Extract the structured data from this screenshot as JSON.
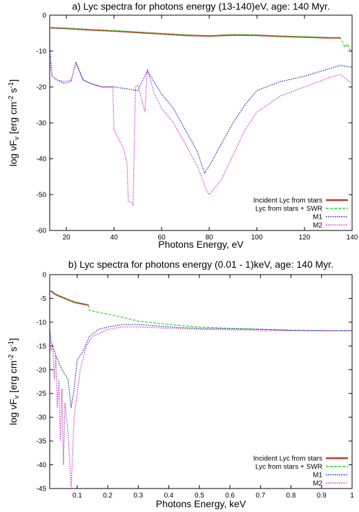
{
  "chart_data": [
    {
      "type": "line",
      "title": "a) Lyc spectra for photons energy (13-140)eV, age: 140 Myr.",
      "xlabel": "Photons Energy, eV",
      "ylabel_parts": {
        "main": "log νF",
        "sub": "ν",
        "bracket_open": " [erg cm",
        "exp1": "-2",
        "mid": " s",
        "exp2": "-1",
        "bracket_close": "]"
      },
      "xlim": [
        13,
        140
      ],
      "ylim": [
        -60,
        0
      ],
      "xticks": [
        20,
        40,
        60,
        80,
        100,
        120,
        140
      ],
      "yticks": [
        0,
        -10,
        -20,
        -30,
        -40,
        -50,
        -60
      ],
      "legend_position": "bottom-right",
      "series": [
        {
          "name": "Incident Lyc from stars",
          "color": "#c0392b",
          "style": "solid",
          "points": [
            [
              13,
              -3.5
            ],
            [
              20,
              -3.7
            ],
            [
              30,
              -4.1
            ],
            [
              40,
              -4.4
            ],
            [
              50,
              -4.8
            ],
            [
              60,
              -5.2
            ],
            [
              70,
              -5.6
            ],
            [
              80,
              -5.8
            ],
            [
              90,
              -5.5
            ],
            [
              100,
              -5.6
            ],
            [
              110,
              -5.9
            ],
            [
              120,
              -6.1
            ],
            [
              130,
              -6.3
            ],
            [
              135,
              -6.3
            ]
          ]
        },
        {
          "name": "Lyc from stars + SWR",
          "color": "#33cc33",
          "style": "dashed",
          "points": [
            [
              13,
              -3.4
            ],
            [
              20,
              -3.6
            ],
            [
              30,
              -4.0
            ],
            [
              40,
              -4.3
            ],
            [
              50,
              -4.7
            ],
            [
              60,
              -5.1
            ],
            [
              70,
              -5.5
            ],
            [
              80,
              -5.7
            ],
            [
              90,
              -5.4
            ],
            [
              100,
              -5.5
            ],
            [
              110,
              -5.8
            ],
            [
              120,
              -6.0
            ],
            [
              130,
              -6.2
            ],
            [
              135,
              -6.3
            ],
            [
              136,
              -7.5
            ],
            [
              137,
              -9
            ],
            [
              138,
              -8
            ],
            [
              139,
              -9.5
            ],
            [
              140,
              -10
            ]
          ]
        },
        {
          "name": "M1",
          "color": "#2222aa",
          "style": "dotted",
          "points": [
            [
              13,
              -9
            ],
            [
              14,
              -17
            ],
            [
              16,
              -18
            ],
            [
              19,
              -19
            ],
            [
              22,
              -18.5
            ],
            [
              24,
              -13
            ],
            [
              27,
              -18
            ],
            [
              30,
              -19
            ],
            [
              35,
              -20
            ],
            [
              40,
              -20
            ],
            [
              45,
              -20.5
            ],
            [
              50,
              -21
            ],
            [
              54,
              -15.5
            ],
            [
              60,
              -22
            ],
            [
              65,
              -26
            ],
            [
              70,
              -32
            ],
            [
              75,
              -38
            ],
            [
              78,
              -44
            ],
            [
              80,
              -42
            ],
            [
              85,
              -36
            ],
            [
              90,
              -30
            ],
            [
              95,
              -25
            ],
            [
              100,
              -21
            ],
            [
              110,
              -18.5
            ],
            [
              120,
              -17
            ],
            [
              130,
              -15
            ],
            [
              135,
              -14
            ],
            [
              140,
              -14.5
            ]
          ]
        },
        {
          "name": "M2",
          "color": "#cc33cc",
          "style": "dotted",
          "points": [
            [
              13,
              -12
            ],
            [
              14,
              -17
            ],
            [
              16,
              -18
            ],
            [
              19,
              -18.5
            ],
            [
              22,
              -18
            ],
            [
              24,
              -13.5
            ],
            [
              27,
              -18
            ],
            [
              30,
              -19
            ],
            [
              35,
              -20
            ],
            [
              39.5,
              -20
            ],
            [
              40,
              -32
            ],
            [
              44,
              -37
            ],
            [
              45.5,
              -41.5
            ],
            [
              46,
              -52
            ],
            [
              47,
              -52
            ],
            [
              48,
              -53
            ],
            [
              49,
              -20
            ],
            [
              50,
              -19.5
            ],
            [
              53,
              -27
            ],
            [
              54,
              -15
            ],
            [
              57,
              -22
            ],
            [
              60,
              -26
            ],
            [
              65,
              -30
            ],
            [
              70,
              -36
            ],
            [
              75,
              -42
            ],
            [
              79,
              -49
            ],
            [
              80,
              -50
            ],
            [
              85,
              -46
            ],
            [
              90,
              -39
            ],
            [
              95,
              -32
            ],
            [
              100,
              -27
            ],
            [
              110,
              -22.5
            ],
            [
              120,
              -20
            ],
            [
              130,
              -17.5
            ],
            [
              135,
              -16.5
            ],
            [
              140,
              -19
            ]
          ]
        }
      ]
    },
    {
      "type": "line",
      "title": "b) Lyc spectra for photons energy (0.01 - 1)keV, age: 140 Myr.",
      "xlabel": "Photons Energy, keV",
      "ylabel_parts": {
        "main": "log νF",
        "sub": "ν",
        "bracket_open": " [erg cm",
        "exp1": "-2",
        "mid": " s",
        "exp2": "-1",
        "bracket_close": "]"
      },
      "xlim": [
        0.01,
        1
      ],
      "ylim": [
        -45,
        0
      ],
      "xticks": [
        0.1,
        0.2,
        0.3,
        0.4,
        0.5,
        0.6,
        0.7,
        0.8,
        0.9,
        1
      ],
      "yticks": [
        0,
        -5,
        -10,
        -15,
        -20,
        -25,
        -30,
        -35,
        -40,
        -45
      ],
      "legend_position": "bottom-right",
      "series": [
        {
          "name": "Incident Lyc from stars",
          "color": "#c0392b",
          "style": "solid",
          "points": [
            [
              0.013,
              -3.4
            ],
            [
              0.03,
              -4.2
            ],
            [
              0.06,
              -5.0
            ],
            [
              0.09,
              -5.8
            ],
            [
              0.12,
              -6.2
            ],
            [
              0.137,
              -6.4
            ]
          ]
        },
        {
          "name": "Lyc from stars + SWR",
          "color": "#33cc33",
          "style": "dashed",
          "points": [
            [
              0.013,
              -3.3
            ],
            [
              0.03,
              -4.1
            ],
            [
              0.06,
              -4.9
            ],
            [
              0.09,
              -5.7
            ],
            [
              0.12,
              -6.1
            ],
            [
              0.137,
              -6.3
            ],
            [
              0.14,
              -7.5
            ],
            [
              0.16,
              -7.8
            ],
            [
              0.2,
              -8.3
            ],
            [
              0.25,
              -9.0
            ],
            [
              0.3,
              -9.8
            ],
            [
              0.4,
              -10.5
            ],
            [
              0.5,
              -11.0
            ],
            [
              0.6,
              -11.3
            ],
            [
              0.7,
              -11.5
            ],
            [
              0.8,
              -11.7
            ],
            [
              0.9,
              -11.8
            ],
            [
              1.0,
              -11.8
            ]
          ]
        },
        {
          "name": "M1",
          "color": "#2222aa",
          "style": "dotted",
          "points": [
            [
              0.01,
              -11
            ],
            [
              0.014,
              -14
            ],
            [
              0.02,
              -15
            ],
            [
              0.03,
              -17
            ],
            [
              0.05,
              -20
            ],
            [
              0.07,
              -22
            ],
            [
              0.08,
              -28
            ],
            [
              0.09,
              -24
            ],
            [
              0.1,
              -18
            ],
            [
              0.12,
              -16
            ],
            [
              0.14,
              -13
            ],
            [
              0.17,
              -11.5
            ],
            [
              0.2,
              -11
            ],
            [
              0.25,
              -10.5
            ],
            [
              0.3,
              -10.5
            ],
            [
              0.4,
              -11
            ],
            [
              0.5,
              -11.3
            ],
            [
              0.6,
              -11.4
            ],
            [
              0.7,
              -11.5
            ],
            [
              0.8,
              -11.7
            ],
            [
              0.9,
              -11.8
            ],
            [
              1.0,
              -11.8
            ]
          ]
        },
        {
          "name": "M2",
          "color": "#cc33cc",
          "style": "dotted",
          "points": [
            [
              0.01,
              -13
            ],
            [
              0.014,
              -16
            ],
            [
              0.02,
              -15
            ],
            [
              0.025,
              -22
            ],
            [
              0.03,
              -17
            ],
            [
              0.035,
              -28
            ],
            [
              0.04,
              -22
            ],
            [
              0.045,
              -35
            ],
            [
              0.05,
              -24
            ],
            [
              0.055,
              -40
            ],
            [
              0.06,
              -27
            ],
            [
              0.07,
              -33
            ],
            [
              0.08,
              -45
            ],
            [
              0.09,
              -30
            ],
            [
              0.1,
              -25
            ],
            [
              0.11,
              -20
            ],
            [
              0.13,
              -15
            ],
            [
              0.15,
              -13
            ],
            [
              0.2,
              -11.5
            ],
            [
              0.25,
              -11
            ],
            [
              0.3,
              -11
            ],
            [
              0.4,
              -11.3
            ],
            [
              0.5,
              -11.5
            ],
            [
              0.6,
              -11.6
            ],
            [
              0.7,
              -11.7
            ],
            [
              0.8,
              -11.8
            ],
            [
              0.9,
              -11.8
            ],
            [
              1.0,
              -11.8
            ]
          ]
        }
      ]
    }
  ]
}
